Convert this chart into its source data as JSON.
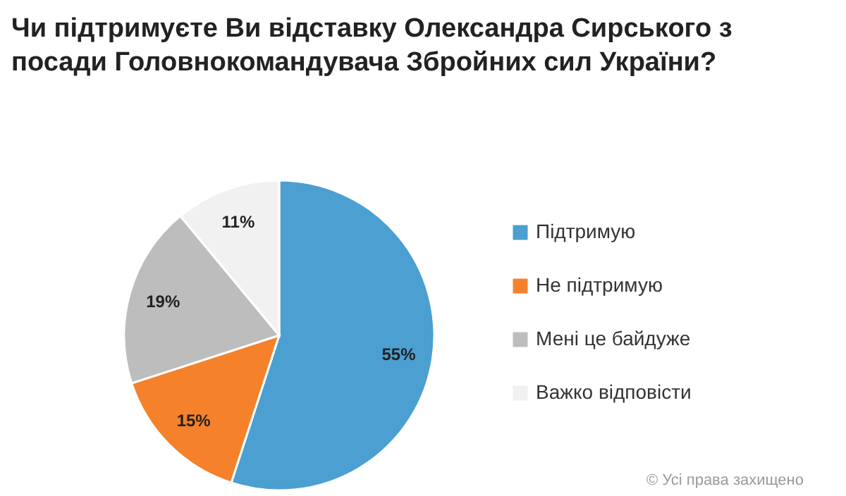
{
  "chart_data": {
    "type": "pie",
    "title": [
      "Чи підтримуєте Ви відставку Олександра Сирського з",
      "посади Головнокомандувача Збройних сил України?"
    ],
    "categories": [
      "Підтримую",
      "Не підтримую",
      "Мені це байдуже",
      "Важко відповісти"
    ],
    "values": [
      55,
      15,
      19,
      11
    ],
    "colors": [
      "#4b9fd1",
      "#f5822a",
      "#bdbdbd",
      "#f1f1f1"
    ],
    "value_labels": [
      "55%",
      "15%",
      "19%",
      "11%"
    ],
    "legend": "right",
    "annotations": [
      "© Усі права захищено"
    ]
  }
}
